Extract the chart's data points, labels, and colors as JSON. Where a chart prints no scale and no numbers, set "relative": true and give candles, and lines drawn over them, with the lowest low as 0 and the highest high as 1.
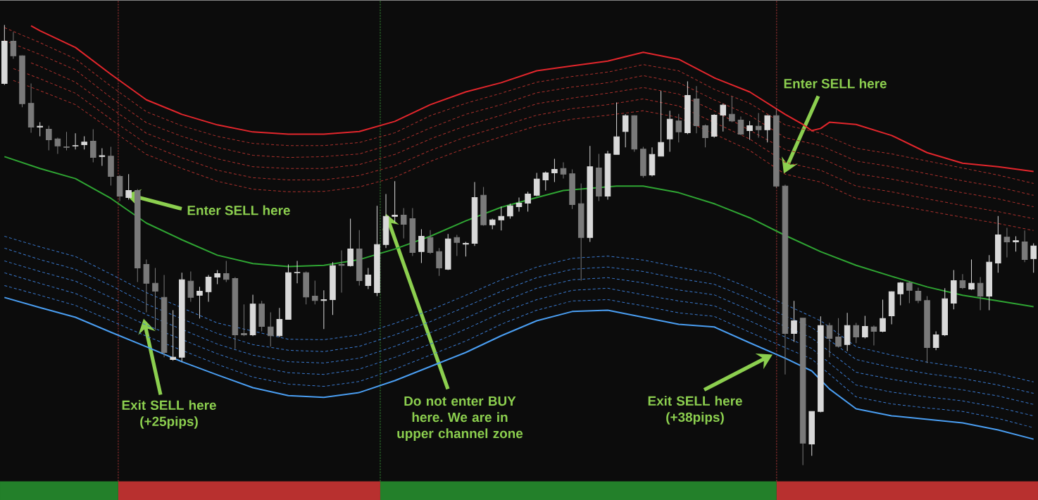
{
  "chart_data": {
    "type": "candlestick",
    "relative": true,
    "categories": [
      null,
      null,
      null,
      null,
      null,
      null,
      null,
      null,
      null,
      null,
      null,
      null,
      null,
      null,
      null,
      null,
      null,
      null,
      null,
      null,
      null,
      null,
      null,
      null,
      null,
      null,
      null,
      null,
      null,
      null,
      null,
      null,
      null,
      null,
      null,
      null,
      null,
      null,
      null,
      null,
      null,
      null,
      null,
      null,
      null,
      null,
      null,
      null,
      null,
      null,
      null,
      null,
      null,
      null,
      null,
      null,
      null,
      null,
      null,
      null,
      null,
      null,
      null,
      null,
      null,
      null,
      null,
      null,
      null,
      null,
      null,
      null,
      null,
      null,
      null,
      null,
      null,
      null,
      null,
      null,
      null,
      null,
      null,
      null,
      null,
      null,
      null,
      null,
      null,
      null,
      null,
      null,
      null,
      null,
      null,
      null,
      null,
      null,
      null,
      null,
      null,
      null,
      null,
      null,
      null,
      null,
      null,
      null,
      null,
      null,
      null,
      null,
      null,
      null,
      null,
      null,
      null
    ],
    "ohlc": [
      [
        0.867,
        1.0,
        0.864,
        0.963
      ],
      [
        0.963,
        0.984,
        0.923,
        0.93
      ],
      [
        0.93,
        0.931,
        0.813,
        0.821
      ],
      [
        0.822,
        0.867,
        0.755,
        0.768
      ],
      [
        0.768,
        0.779,
        0.747,
        0.77
      ],
      [
        0.763,
        0.771,
        0.715,
        0.739
      ],
      [
        0.741,
        0.744,
        0.707,
        0.725
      ],
      [
        0.723,
        0.757,
        0.715,
        0.722
      ],
      [
        0.725,
        0.754,
        0.717,
        0.726
      ],
      [
        0.728,
        0.747,
        0.717,
        0.734
      ],
      [
        0.736,
        0.763,
        0.688,
        0.699
      ],
      [
        0.701,
        0.72,
        0.68,
        0.703
      ],
      [
        0.702,
        0.723,
        0.635,
        0.656
      ],
      [
        0.656,
        0.659,
        0.6,
        0.611
      ],
      [
        0.608,
        0.661,
        0.603,
        0.624
      ],
      [
        0.624,
        0.627,
        0.416,
        0.448
      ],
      [
        0.456,
        0.467,
        0.347,
        0.413
      ],
      [
        0.413,
        0.448,
        0.307,
        0.395
      ],
      [
        0.381,
        0.432,
        0.245,
        0.256
      ],
      [
        0.24,
        0.352,
        0.237,
        0.245
      ],
      [
        0.245,
        0.437,
        0.235,
        0.421
      ],
      [
        0.418,
        0.44,
        0.371,
        0.381
      ],
      [
        0.386,
        0.405,
        0.333,
        0.395
      ],
      [
        0.394,
        0.432,
        0.371,
        0.427
      ],
      [
        0.427,
        0.443,
        0.411,
        0.435
      ],
      [
        0.435,
        0.464,
        0.416,
        0.422
      ],
      [
        0.424,
        0.427,
        0.264,
        0.296
      ],
      [
        0.299,
        0.365,
        0.293,
        0.296
      ],
      [
        0.296,
        0.387,
        0.293,
        0.366
      ],
      [
        0.366,
        0.373,
        0.304,
        0.315
      ],
      [
        0.314,
        0.347,
        0.269,
        0.294
      ],
      [
        0.294,
        0.357,
        0.291,
        0.331
      ],
      [
        0.331,
        0.456,
        0.331,
        0.437
      ],
      [
        0.437,
        0.464,
        0.413,
        0.438
      ],
      [
        0.437,
        0.44,
        0.365,
        0.382
      ],
      [
        0.384,
        0.419,
        0.365,
        0.374
      ],
      [
        0.374,
        0.397,
        0.309,
        0.376
      ],
      [
        0.376,
        0.461,
        0.341,
        0.453
      ],
      [
        0.456,
        0.488,
        0.392,
        0.454
      ],
      [
        0.453,
        0.56,
        0.451,
        0.491
      ],
      [
        0.491,
        0.534,
        0.408,
        0.419
      ],
      [
        0.408,
        0.448,
        0.4,
        0.432
      ],
      [
        0.392,
        0.589,
        0.384,
        0.501
      ],
      [
        0.501,
        0.616,
        0.493,
        0.565
      ],
      [
        0.565,
        0.645,
        0.552,
        0.568
      ],
      [
        0.568,
        0.584,
        0.515,
        0.547
      ],
      [
        0.56,
        0.584,
        0.475,
        0.483
      ],
      [
        0.485,
        0.536,
        0.459,
        0.52
      ],
      [
        0.517,
        0.534,
        0.48,
        0.483
      ],
      [
        0.485,
        0.493,
        0.43,
        0.448
      ],
      [
        0.445,
        0.525,
        0.443,
        0.514
      ],
      [
        0.517,
        0.523,
        0.475,
        0.506
      ],
      [
        0.502,
        0.507,
        0.474,
        0.504
      ],
      [
        0.504,
        0.643,
        0.498,
        0.608
      ],
      [
        0.613,
        0.632,
        0.544,
        0.546
      ],
      [
        0.546,
        0.56,
        0.536,
        0.557
      ],
      [
        0.557,
        0.587,
        0.533,
        0.565
      ],
      [
        0.566,
        0.594,
        0.56,
        0.589
      ],
      [
        0.587,
        0.608,
        0.576,
        0.595
      ],
      [
        0.595,
        0.621,
        0.576,
        0.616
      ],
      [
        0.613,
        0.664,
        0.611,
        0.65
      ],
      [
        0.648,
        0.667,
        0.624,
        0.664
      ],
      [
        0.664,
        0.696,
        0.643,
        0.672
      ],
      [
        0.674,
        0.688,
        0.651,
        0.661
      ],
      [
        0.662,
        0.672,
        0.582,
        0.592
      ],
      [
        0.594,
        0.64,
        0.419,
        0.517
      ],
      [
        0.517,
        0.725,
        0.507,
        0.678
      ],
      [
        0.675,
        0.707,
        0.6,
        0.611
      ],
      [
        0.611,
        0.714,
        0.603,
        0.707
      ],
      [
        0.706,
        0.824,
        0.706,
        0.746
      ],
      [
        0.758,
        0.797,
        0.722,
        0.794
      ],
      [
        0.794,
        0.795,
        0.712,
        0.718
      ],
      [
        0.718,
        0.723,
        0.653,
        0.658
      ],
      [
        0.659,
        0.722,
        0.656,
        0.706
      ],
      [
        0.702,
        0.85,
        0.701,
        0.733
      ],
      [
        0.741,
        0.805,
        0.712,
        0.786
      ],
      [
        0.782,
        0.798,
        0.733,
        0.757
      ],
      [
        0.755,
        0.872,
        0.752,
        0.84
      ],
      [
        0.832,
        0.861,
        0.754,
        0.771
      ],
      [
        0.771,
        0.774,
        0.722,
        0.744
      ],
      [
        0.747,
        0.797,
        0.744,
        0.795
      ],
      [
        0.795,
        0.821,
        0.758,
        0.818
      ],
      [
        0.797,
        0.838,
        0.779,
        0.782
      ],
      [
        0.784,
        0.792,
        0.75,
        0.752
      ],
      [
        0.76,
        0.782,
        0.739,
        0.771
      ],
      [
        0.77,
        0.8,
        0.744,
        0.762
      ],
      [
        0.762,
        0.795,
        0.733,
        0.794
      ],
      [
        0.794,
        0.81,
        0.63,
        0.634
      ],
      [
        0.634,
        0.637,
        0.206,
        0.299
      ],
      [
        0.299,
        0.373,
        0.28,
        0.328
      ],
      [
        0.334,
        0.334,
        0.0,
        0.05
      ],
      [
        0.048,
        0.122,
        0.021,
        0.122
      ],
      [
        0.122,
        0.338,
        0.12,
        0.317
      ],
      [
        0.317,
        0.323,
        0.245,
        0.288
      ],
      [
        0.291,
        0.334,
        0.267,
        0.27
      ],
      [
        0.274,
        0.346,
        0.259,
        0.317
      ],
      [
        0.317,
        0.323,
        0.277,
        0.291
      ],
      [
        0.291,
        0.339,
        0.288,
        0.315
      ],
      [
        0.314,
        0.317,
        0.272,
        0.304
      ],
      [
        0.304,
        0.376,
        0.302,
        0.333
      ],
      [
        0.339,
        0.395,
        0.32,
        0.394
      ],
      [
        0.389,
        0.416,
        0.363,
        0.414
      ],
      [
        0.414,
        0.418,
        0.368,
        0.397
      ],
      [
        0.395,
        0.403,
        0.368,
        0.374
      ],
      [
        0.374,
        0.384,
        0.232,
        0.267
      ],
      [
        0.267,
        0.304,
        0.261,
        0.296
      ],
      [
        0.296,
        0.402,
        0.293,
        0.378
      ],
      [
        0.368,
        0.443,
        0.354,
        0.419
      ],
      [
        0.419,
        0.434,
        0.4,
        0.403
      ],
      [
        0.4,
        0.467,
        0.398,
        0.413
      ],
      [
        0.413,
        0.427,
        0.352,
        0.384
      ],
      [
        0.384,
        0.477,
        0.352,
        0.461
      ],
      [
        0.459,
        0.566,
        0.437,
        0.523
      ],
      [
        0.518,
        0.539,
        0.472,
        0.507
      ],
      [
        0.507,
        0.52,
        0.485,
        0.51
      ],
      [
        0.507,
        0.533,
        0.461,
        0.467
      ],
      [
        0.469,
        0.504,
        0.437,
        0.498
      ]
    ],
    "colors": [
      "#d9d9d9",
      "#7a7a7a",
      "#7a7a7a",
      "#7a7a7a",
      "#d9d9d9",
      "#7a7a7a",
      "#7a7a7a",
      "#7a7a7a",
      "#d9d9d9",
      "#d9d9d9",
      "#7a7a7a",
      "#d9d9d9",
      "#7a7a7a",
      "#7a7a7a",
      "#d9d9d9",
      "#7a7a7a",
      "#7a7a7a",
      "#7a7a7a",
      "#7a7a7a",
      "#d9d9d9",
      "#d9d9d9",
      "#7a7a7a",
      "#d9d9d9",
      "#d9d9d9",
      "#d9d9d9",
      "#7a7a7a",
      "#7a7a7a",
      "#7a7a7a",
      "#d9d9d9",
      "#7a7a7a",
      "#7a7a7a",
      "#d9d9d9",
      "#d9d9d9",
      "#d9d9d9",
      "#7a7a7a",
      "#7a7a7a",
      "#d9d9d9",
      "#d9d9d9",
      "#7a7a7a",
      "#d9d9d9",
      "#7a7a7a",
      "#d9d9d9",
      "#d9d9d9",
      "#d9d9d9",
      "#d9d9d9",
      "#7a7a7a",
      "#7a7a7a",
      "#d9d9d9",
      "#7a7a7a",
      "#7a7a7a",
      "#d9d9d9",
      "#7a7a7a",
      "#d9d9d9",
      "#d9d9d9",
      "#7a7a7a",
      "#d9d9d9",
      "#d9d9d9",
      "#d9d9d9",
      "#d9d9d9",
      "#d9d9d9",
      "#d9d9d9",
      "#d9d9d9",
      "#d9d9d9",
      "#7a7a7a",
      "#7a7a7a",
      "#7a7a7a",
      "#d9d9d9",
      "#7a7a7a",
      "#d9d9d9",
      "#d9d9d9",
      "#d9d9d9",
      "#7a7a7a",
      "#7a7a7a",
      "#d9d9d9",
      "#d9d9d9",
      "#d9d9d9",
      "#7a7a7a",
      "#d9d9d9",
      "#7a7a7a",
      "#7a7a7a",
      "#d9d9d9",
      "#d9d9d9",
      "#7a7a7a",
      "#7a7a7a",
      "#d9d9d9",
      "#7a7a7a",
      "#d9d9d9",
      "#7a7a7a",
      "#7a7a7a",
      "#d9d9d9",
      "#7a7a7a",
      "#d9d9d9",
      "#d9d9d9",
      "#7a7a7a",
      "#7a7a7a",
      "#d9d9d9",
      "#7a7a7a",
      "#d9d9d9",
      "#7a7a7a",
      "#d9d9d9",
      "#d9d9d9",
      "#d9d9d9",
      "#7a7a7a",
      "#7a7a7a",
      "#7a7a7a",
      "#d9d9d9",
      "#d9d9d9",
      "#d9d9d9",
      "#7a7a7a",
      "#d9d9d9",
      "#7a7a7a",
      "#d9d9d9",
      "#d9d9d9",
      "#7a7a7a",
      "#d9d9d9",
      "#7a7a7a",
      "#d9d9d9"
    ],
    "series": [
      {
        "type": "line",
        "color": "#e3262c",
        "values": [
          null,
          null,
          null,
          0.998,
          0.987,
          null,
          null,
          null,
          0.949,
          null,
          null,
          null,
          0.888,
          null,
          null,
          null,
          0.83,
          null,
          null,
          null,
          0.797,
          null,
          null,
          null,
          0.773,
          null,
          null,
          null,
          0.757,
          null,
          null,
          null,
          0.752,
          null,
          null,
          null,
          0.752,
          null,
          null,
          null,
          0.758,
          null,
          null,
          null,
          0.781,
          null,
          null,
          null,
          0.819,
          null,
          null,
          null,
          0.848,
          null,
          null,
          null,
          0.869,
          null,
          null,
          null,
          0.896,
          null,
          null,
          null,
          0.907,
          null,
          null,
          null,
          0.918,
          null,
          null,
          null,
          0.938,
          null,
          null,
          null,
          0.922,
          null,
          null,
          null,
          0.88,
          null,
          null,
          null,
          0.848,
          null,
          null,
          null,
          0.797,
          null,
          0.774,
          0.76,
          0.765,
          0.779,
          null,
          null,
          0.774,
          null,
          null,
          null,
          0.749,
          null,
          null,
          null,
          0.71,
          null,
          null,
          null,
          0.686,
          null,
          null,
          null,
          0.678,
          null,
          null,
          null,
          0.667
        ]
      },
      {
        "type": "line",
        "color": "#a8302c",
        "line_style": "dashed",
        "values": [
          0.994,
          null,
          null,
          null,
          0.96,
          null,
          null,
          null,
          0.923,
          null,
          null,
          null,
          0.861,
          null,
          null,
          null,
          0.803,
          null,
          null,
          null,
          0.771,
          null,
          null,
          null,
          0.747,
          null,
          null,
          null,
          0.731,
          null,
          null,
          null,
          0.726,
          null,
          null,
          null,
          0.726,
          null,
          null,
          null,
          0.733,
          null,
          null,
          null,
          0.755,
          null,
          null,
          null,
          0.794,
          null,
          null,
          null,
          0.822,
          null,
          null,
          null,
          0.845,
          null,
          null,
          null,
          0.87,
          null,
          null,
          null,
          0.883,
          null,
          null,
          null,
          0.893,
          null,
          null,
          null,
          0.91,
          null,
          null,
          null,
          0.896,
          null,
          null,
          null,
          0.854,
          null,
          null,
          null,
          0.822,
          null,
          null,
          null,
          0.773,
          null,
          null,
          null,
          0.754,
          null,
          null,
          null,
          0.72,
          null,
          null,
          null,
          0.707,
          null,
          null,
          null,
          0.691,
          null,
          null,
          null,
          0.675,
          null,
          null,
          null,
          0.659,
          null,
          null,
          null,
          0.64
        ]
      },
      {
        "type": "line",
        "color": "#a8302c",
        "line_style": "dashed",
        "values": [
          0.965,
          null,
          null,
          null,
          0.933,
          null,
          null,
          null,
          0.898,
          null,
          null,
          null,
          0.835,
          null,
          null,
          null,
          0.778,
          null,
          null,
          null,
          0.747,
          null,
          null,
          null,
          0.722,
          null,
          null,
          null,
          0.704,
          null,
          null,
          null,
          0.699,
          null,
          null,
          null,
          0.701,
          null,
          null,
          null,
          0.707,
          null,
          null,
          null,
          0.731,
          null,
          null,
          null,
          0.766,
          null,
          null,
          null,
          0.797,
          null,
          null,
          null,
          0.819,
          null,
          null,
          null,
          0.846,
          null,
          null,
          null,
          0.859,
          null,
          null,
          null,
          0.869,
          null,
          null,
          null,
          0.885,
          null,
          null,
          null,
          0.869,
          null,
          null,
          null,
          0.83,
          null,
          null,
          null,
          0.795,
          null,
          null,
          null,
          0.744,
          null,
          null,
          null,
          0.726,
          null,
          null,
          null,
          0.691,
          null,
          null,
          null,
          0.678,
          null,
          null,
          null,
          0.662,
          null,
          null,
          null,
          0.646,
          null,
          null,
          null,
          0.632,
          null,
          null,
          null,
          0.613
        ]
      },
      {
        "type": "line",
        "color": "#a8302c",
        "line_style": "dashed",
        "values": [
          null,
          null,
          null,
          0.914,
          0.906,
          null,
          null,
          null,
          0.87,
          null,
          null,
          null,
          0.811,
          null,
          null,
          null,
          0.754,
          null,
          null,
          null,
          0.723,
          null,
          null,
          null,
          0.696,
          null,
          null,
          null,
          0.678,
          null,
          null,
          null,
          0.674,
          null,
          null,
          null,
          0.674,
          null,
          null,
          null,
          0.683,
          null,
          null,
          null,
          0.706,
          null,
          null,
          null,
          0.741,
          null,
          null,
          null,
          0.771,
          null,
          null,
          null,
          0.795,
          null,
          null,
          null,
          0.821,
          null,
          null,
          null,
          0.834,
          null,
          null,
          null,
          0.845,
          null,
          null,
          null,
          0.858,
          null,
          null,
          null,
          0.843,
          null,
          null,
          null,
          0.805,
          null,
          null,
          null,
          null,
          null,
          null,
          null,
          0.717,
          null,
          null,
          null,
          0.698,
          null,
          null,
          null,
          0.662,
          null,
          null,
          null,
          0.65,
          null,
          null,
          null,
          0.634,
          null,
          null,
          null,
          0.619,
          null,
          null,
          null,
          0.605,
          null,
          null,
          null,
          0.587
        ]
      },
      {
        "type": "line",
        "color": "#a8302c",
        "line_style": "dashed",
        "values": [
          null,
          0.901,
          null,
          null,
          0.878,
          null,
          null,
          null,
          0.845,
          null,
          null,
          null,
          0.786,
          null,
          null,
          null,
          0.73,
          null,
          null,
          null,
          0.698,
          null,
          null,
          null,
          0.67,
          null,
          null,
          null,
          0.653,
          null,
          null,
          null,
          0.648,
          null,
          null,
          null,
          0.648,
          null,
          null,
          null,
          0.658,
          null,
          null,
          null,
          0.68,
          null,
          null,
          null,
          0.715,
          null,
          null,
          null,
          0.746,
          null,
          null,
          null,
          0.77,
          null,
          null,
          null,
          0.795,
          null,
          null,
          null,
          0.81,
          null,
          null,
          null,
          0.819,
          null,
          null,
          null,
          0.832,
          null,
          null,
          null,
          0.816,
          null,
          null,
          null,
          null,
          null,
          null,
          null,
          0.741,
          null,
          null,
          null,
          0.688,
          null,
          null,
          null,
          0.67,
          null,
          null,
          null,
          0.634,
          null,
          null,
          null,
          0.621,
          null,
          null,
          null,
          0.605,
          null,
          null,
          null,
          0.59,
          null,
          null,
          null,
          0.576,
          null,
          null,
          null,
          0.56
        ]
      },
      {
        "type": "line",
        "color": "#a8302c",
        "line_style": "dashed",
        "values": [
          null,
          0.874,
          null,
          null,
          0.851,
          null,
          null,
          null,
          0.819,
          null,
          null,
          null,
          0.762,
          null,
          null,
          null,
          0.706,
          null,
          null,
          null,
          0.674,
          null,
          null,
          null,
          0.645,
          null,
          null,
          null,
          0.627,
          null,
          null,
          null,
          0.621,
          null,
          null,
          null,
          0.622,
          null,
          null,
          null,
          0.632,
          null,
          null,
          null,
          0.654,
          null,
          null,
          null,
          0.69,
          null,
          null,
          null,
          0.72,
          null,
          null,
          null,
          0.746,
          null,
          null,
          null,
          0.771,
          null,
          null,
          null,
          0.786,
          null,
          null,
          null,
          0.795,
          null,
          null,
          null,
          0.805,
          null,
          null,
          null,
          0.79,
          null,
          null,
          null,
          null,
          null,
          null,
          null,
          0.715,
          null,
          null,
          null,
          0.661,
          null,
          null,
          null,
          0.643,
          null,
          null,
          null,
          0.606,
          null,
          null,
          null,
          0.592,
          null,
          null,
          null,
          0.578,
          null,
          null,
          null,
          0.563,
          null,
          null,
          null,
          0.549,
          null,
          null,
          null,
          0.533
        ]
      },
      {
        "type": "line",
        "color": "#2fa533",
        "values": [
          0.701,
          null,
          null,
          null,
          0.674,
          null,
          null,
          null,
          0.651,
          null,
          null,
          null,
          0.606,
          null,
          null,
          null,
          0.55,
          null,
          null,
          null,
          0.512,
          null,
          null,
          null,
          0.477,
          null,
          null,
          null,
          0.458,
          null,
          null,
          null,
          0.451,
          null,
          null,
          null,
          0.454,
          null,
          null,
          null,
          0.467,
          null,
          null,
          null,
          0.491,
          null,
          null,
          null,
          0.52,
          null,
          null,
          null,
          0.555,
          null,
          null,
          null,
          0.586,
          null,
          null,
          null,
          0.608,
          null,
          null,
          0.624,
          null,
          null,
          null,
          null,
          null,
          0.634,
          null,
          null,
          0.634,
          null,
          null,
          null,
          0.619,
          null,
          null,
          null,
          0.594,
          null,
          null,
          null,
          0.562,
          null,
          null,
          null,
          0.522,
          null,
          null,
          null,
          0.485,
          null,
          null,
          null,
          0.454,
          null,
          null,
          null,
          0.429,
          null,
          null,
          null,
          0.405,
          null,
          null,
          null,
          0.386,
          null,
          null,
          null,
          0.373,
          null,
          null,
          null,
          0.36
        ]
      },
      {
        "type": "line",
        "color": "#3a78cc",
        "line_style": "dashed",
        "values": [
          0.52,
          null,
          null,
          null,
          0.496,
          null,
          null,
          null,
          0.474,
          null,
          null,
          null,
          0.434,
          null,
          null,
          null,
          0.392,
          null,
          null,
          null,
          null,
          null,
          null,
          null,
          0.323,
          null,
          null,
          null,
          null,
          null,
          null,
          null,
          0.286,
          null,
          null,
          null,
          0.285,
          null,
          null,
          null,
          0.296,
          null,
          null,
          null,
          0.322,
          null,
          null,
          null,
          0.352,
          null,
          null,
          null,
          0.386,
          null,
          null,
          null,
          0.421,
          null,
          null,
          null,
          0.45,
          null,
          null,
          null,
          0.47,
          null,
          null,
          null,
          0.475,
          null,
          null,
          null,
          0.466,
          null,
          null,
          null,
          0.45,
          null,
          null,
          null,
          0.435,
          null,
          null,
          null,
          0.402,
          null,
          null,
          null,
          0.365,
          null,
          null,
          null,
          0.328,
          null,
          null,
          null,
          0.269,
          null,
          null,
          null,
          0.25,
          null,
          null,
          null,
          0.234,
          null,
          null,
          null,
          0.222,
          null,
          null,
          null,
          0.208,
          null,
          null,
          null,
          0.189
        ]
      },
      {
        "type": "line",
        "color": "#3a78cc",
        "line_style": "dashed",
        "values": [
          0.493,
          null,
          null,
          null,
          0.467,
          null,
          null,
          null,
          0.445,
          null,
          null,
          null,
          0.408,
          null,
          null,
          null,
          0.366,
          null,
          null,
          null,
          null,
          null,
          null,
          null,
          0.299,
          null,
          null,
          null,
          0.274,
          null,
          null,
          null,
          0.261,
          null,
          null,
          null,
          0.258,
          null,
          null,
          null,
          0.27,
          null,
          null,
          null,
          0.296,
          null,
          null,
          null,
          0.326,
          null,
          null,
          null,
          0.36,
          null,
          null,
          null,
          0.395,
          null,
          null,
          null,
          0.426,
          null,
          null,
          null,
          0.445,
          null,
          null,
          null,
          0.45,
          null,
          null,
          null,
          0.44,
          null,
          null,
          null,
          0.424,
          null,
          null,
          null,
          0.411,
          null,
          null,
          null,
          0.378,
          null,
          null,
          null,
          0.339,
          null,
          null,
          0.313,
          null,
          null,
          null,
          null,
          0.24,
          null,
          null,
          null,
          0.222,
          null,
          null,
          null,
          0.208,
          null,
          null,
          null,
          0.197,
          null,
          null,
          null,
          0.182,
          null,
          null,
          null,
          0.163
        ]
      },
      {
        "type": "line",
        "color": "#3a78cc",
        "line_style": "dashed",
        "values": [
          0.464,
          null,
          null,
          null,
          0.44,
          null,
          null,
          null,
          0.418,
          null,
          null,
          null,
          0.381,
          null,
          null,
          null,
          0.342,
          null,
          null,
          null,
          null,
          null,
          null,
          null,
          0.275,
          null,
          null,
          null,
          0.25,
          null,
          null,
          null,
          0.235,
          null,
          null,
          null,
          0.232,
          null,
          null,
          null,
          0.243,
          null,
          null,
          null,
          0.27,
          null,
          null,
          null,
          0.301,
          null,
          null,
          null,
          0.334,
          null,
          null,
          null,
          0.37,
          null,
          null,
          null,
          0.402,
          null,
          null,
          null,
          0.421,
          null,
          null,
          null,
          0.426,
          null,
          null,
          null,
          0.414,
          null,
          null,
          null,
          0.398,
          null,
          null,
          null,
          0.387,
          null,
          null,
          null,
          0.352,
          null,
          null,
          null,
          0.315,
          null,
          null,
          0.289,
          null,
          null,
          null,
          null,
          0.211,
          null,
          null,
          null,
          0.195,
          null,
          null,
          null,
          0.182,
          null,
          null,
          null,
          0.171,
          null,
          null,
          null,
          0.157,
          null,
          null,
          null,
          0.138
        ]
      },
      {
        "type": "line",
        "color": "#3a78cc",
        "line_style": "dashed",
        "values": [
          0.437,
          null,
          null,
          null,
          0.413,
          null,
          null,
          null,
          0.39,
          null,
          null,
          null,
          0.355,
          null,
          null,
          null,
          0.318,
          null,
          null,
          null,
          null,
          null,
          null,
          null,
          0.253,
          null,
          null,
          null,
          0.226,
          null,
          null,
          null,
          0.21,
          null,
          null,
          null,
          0.206,
          null,
          null,
          null,
          0.218,
          null,
          null,
          null,
          0.245,
          null,
          null,
          null,
          0.275,
          null,
          null,
          null,
          0.309,
          null,
          null,
          null,
          0.346,
          null,
          null,
          null,
          0.376,
          null,
          null,
          null,
          0.397,
          null,
          null,
          null,
          0.402,
          null,
          null,
          null,
          0.387,
          null,
          null,
          null,
          0.373,
          null,
          null,
          null,
          0.362,
          null,
          null,
          null,
          0.328,
          null,
          null,
          null,
          0.291,
          null,
          null,
          0.265,
          null,
          null,
          null,
          null,
          0.182,
          null,
          null,
          null,
          0.166,
          null,
          null,
          null,
          0.155,
          null,
          null,
          null,
          0.146,
          null,
          null,
          null,
          0.131,
          null,
          null,
          null,
          0.112
        ]
      },
      {
        "type": "line",
        "color": "#3a78cc",
        "line_style": "dashed",
        "values": [
          0.408,
          null,
          null,
          null,
          0.386,
          null,
          null,
          null,
          0.363,
          null,
          null,
          null,
          0.328,
          null,
          null,
          null,
          0.293,
          null,
          null,
          null,
          null,
          null,
          null,
          null,
          0.229,
          null,
          null,
          null,
          0.2,
          null,
          null,
          null,
          0.184,
          null,
          null,
          null,
          0.179,
          null,
          null,
          null,
          0.19,
          null,
          null,
          null,
          0.218,
          null,
          null,
          null,
          0.25,
          null,
          null,
          null,
          0.282,
          null,
          null,
          null,
          0.32,
          null,
          null,
          null,
          0.352,
          null,
          null,
          null,
          0.373,
          null,
          null,
          null,
          0.376,
          null,
          null,
          null,
          0.362,
          null,
          null,
          null,
          0.346,
          null,
          null,
          null,
          0.338,
          null,
          null,
          null,
          0.302,
          null,
          null,
          null,
          0.267,
          null,
          null,
          0.241,
          null,
          null,
          null,
          null,
          0.155,
          null,
          null,
          null,
          0.139,
          null,
          null,
          null,
          0.13,
          null,
          null,
          null,
          0.122,
          null,
          null,
          null,
          0.106,
          null,
          null,
          null,
          0.085
        ]
      },
      {
        "type": "line",
        "color": "#4a9ef2",
        "values": [
          0.381,
          null,
          null,
          null,
          0.358,
          null,
          null,
          null,
          0.336,
          null,
          null,
          null,
          0.302,
          null,
          null,
          null,
          0.269,
          null,
          null,
          null,
          0.235,
          null,
          null,
          null,
          0.205,
          null,
          null,
          null,
          0.176,
          null,
          null,
          null,
          0.158,
          null,
          null,
          null,
          0.154,
          null,
          null,
          null,
          0.165,
          null,
          null,
          null,
          0.192,
          null,
          null,
          null,
          0.224,
          null,
          null,
          null,
          0.256,
          null,
          null,
          null,
          0.294,
          null,
          null,
          null,
          0.328,
          null,
          null,
          null,
          0.349,
          null,
          null,
          null,
          0.352,
          null,
          null,
          null,
          0.336,
          null,
          null,
          null,
          0.32,
          null,
          null,
          null,
          0.314,
          null,
          null,
          null,
          0.278,
          null,
          null,
          null,
          0.243,
          null,
          null,
          0.214,
          null,
          0.173,
          null,
          null,
          0.128,
          null,
          null,
          null,
          0.112,
          null,
          null,
          null,
          0.104,
          null,
          null,
          null,
          0.096,
          null,
          null,
          null,
          0.08,
          null,
          null,
          null,
          0.059
        ]
      }
    ],
    "annotations": [
      "Enter SELL here",
      "Exit SELL here (+25pips)",
      "Do not enter BUY here. We are in upper channel zone",
      "Enter SELL here",
      "Exit SELL here (+38pips)"
    ]
  }
}
